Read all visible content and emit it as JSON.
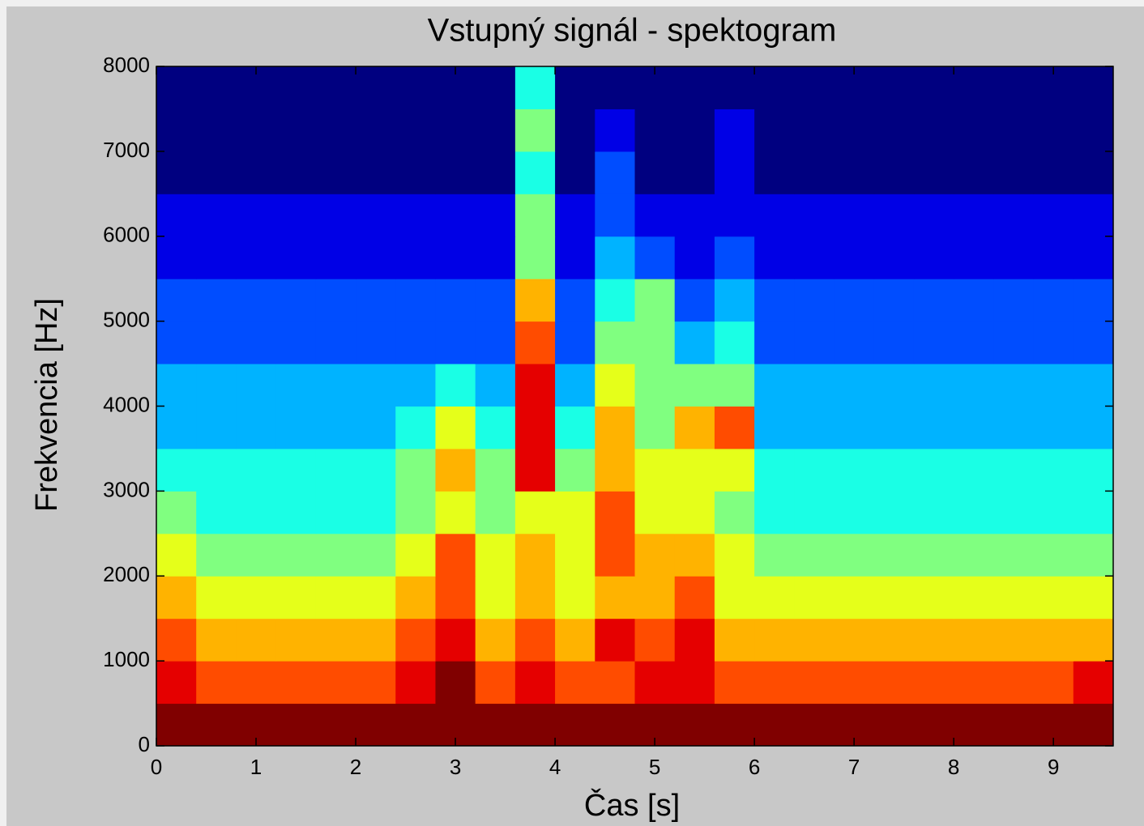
{
  "chart_data": {
    "type": "heatmap",
    "title": "Vstupný signál - spektogram",
    "xlabel": "Čas [s]",
    "ylabel": "Frekvencia [Hz]",
    "xlim": [
      0,
      9.6
    ],
    "ylim": [
      0,
      8000
    ],
    "xticks": [
      0,
      1,
      2,
      3,
      4,
      5,
      6,
      7,
      8,
      9
    ],
    "yticks": [
      0,
      1000,
      2000,
      3000,
      4000,
      5000,
      6000,
      7000,
      8000
    ],
    "colormap": "jet",
    "clim": [
      0,
      10
    ],
    "z": [
      [
        10,
        10,
        10,
        10,
        10,
        10,
        10,
        10,
        10,
        10,
        10,
        10,
        10,
        10,
        10,
        10,
        10,
        10,
        10,
        10,
        10,
        10,
        10,
        10
      ],
      [
        9,
        8,
        8,
        8,
        8,
        8,
        9,
        10,
        8,
        9,
        8,
        8,
        9,
        9,
        8,
        8,
        8,
        8,
        8,
        8,
        8,
        8,
        8,
        9
      ],
      [
        8,
        7,
        7,
        7,
        7,
        7,
        8,
        9,
        7,
        8,
        7,
        9,
        8,
        9,
        7,
        7,
        7,
        7,
        7,
        7,
        7,
        7,
        7,
        7
      ],
      [
        7,
        6,
        6,
        6,
        6,
        6,
        7,
        8,
        6,
        7,
        6,
        7,
        7,
        8,
        6,
        6,
        6,
        6,
        6,
        6,
        6,
        6,
        6,
        6
      ],
      [
        6,
        5,
        5,
        5,
        5,
        5,
        6,
        8,
        6,
        7,
        6,
        8,
        7,
        7,
        6,
        5,
        5,
        5,
        5,
        5,
        5,
        5,
        5,
        5
      ],
      [
        5,
        4,
        4,
        4,
        4,
        4,
        5,
        6,
        5,
        6,
        6,
        8,
        6,
        6,
        5,
        4,
        4,
        4,
        4,
        4,
        4,
        4,
        4,
        4
      ],
      [
        4,
        4,
        4,
        4,
        4,
        4,
        5,
        7,
        5,
        9,
        5,
        7,
        6,
        6,
        6,
        4,
        4,
        4,
        4,
        4,
        4,
        4,
        4,
        4
      ],
      [
        3,
        3,
        3,
        3,
        3,
        3,
        4,
        6,
        4,
        9,
        4,
        7,
        5,
        7,
        8,
        3,
        3,
        3,
        3,
        3,
        3,
        3,
        3,
        3
      ],
      [
        3,
        3,
        3,
        3,
        3,
        3,
        3,
        4,
        3,
        9,
        3,
        6,
        5,
        5,
        5,
        3,
        3,
        3,
        3,
        3,
        3,
        3,
        3,
        3
      ],
      [
        2,
        2,
        2,
        2,
        2,
        2,
        2,
        2,
        2,
        8,
        2,
        5,
        5,
        3,
        4,
        2,
        2,
        2,
        2,
        2,
        2,
        2,
        2,
        2
      ],
      [
        2,
        2,
        2,
        2,
        2,
        2,
        2,
        2,
        2,
        7,
        2,
        4,
        5,
        2,
        3,
        2,
        2,
        2,
        2,
        2,
        2,
        2,
        2,
        2
      ],
      [
        1,
        1,
        1,
        1,
        1,
        1,
        1,
        1,
        1,
        5,
        1,
        3,
        2,
        1,
        2,
        1,
        1,
        1,
        1,
        1,
        1,
        1,
        1,
        1
      ],
      [
        1,
        1,
        1,
        1,
        1,
        1,
        1,
        1,
        1,
        5,
        1,
        2,
        1,
        1,
        1,
        1,
        1,
        1,
        1,
        1,
        1,
        1,
        1,
        1
      ],
      [
        0,
        0,
        0,
        0,
        0,
        0,
        0,
        0,
        0,
        4,
        0,
        2,
        0,
        0,
        1,
        0,
        0,
        0,
        0,
        0,
        0,
        0,
        0,
        0
      ],
      [
        0,
        0,
        0,
        0,
        0,
        0,
        0,
        0,
        0,
        5,
        0,
        1,
        0,
        0,
        1,
        0,
        0,
        0,
        0,
        0,
        0,
        0,
        0,
        0
      ],
      [
        0,
        0,
        0,
        0,
        0,
        0,
        0,
        0,
        0,
        4,
        0,
        0,
        0,
        0,
        0,
        0,
        0,
        0,
        0,
        0,
        0,
        0,
        0,
        0
      ]
    ]
  }
}
